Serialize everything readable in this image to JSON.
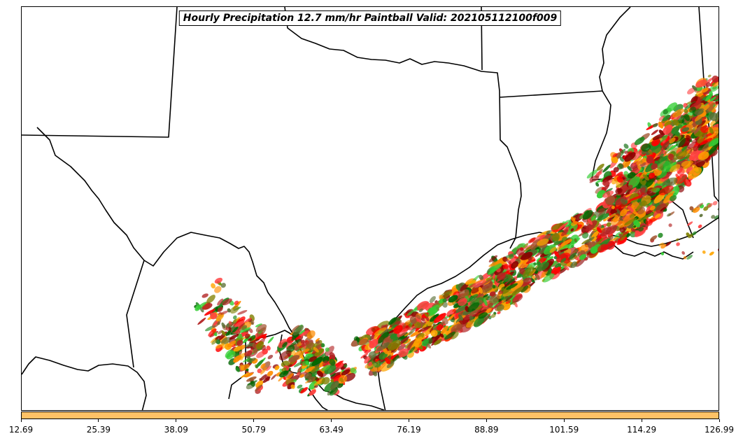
{
  "figure": {
    "title": "Hourly Precipitation 12.7 mm/hr Paintball Valid: 202105112100f009"
  },
  "colorbar": {
    "color": "#ffc266",
    "tick_labels": [
      "12.69",
      "25.39",
      "38.09",
      "50.79",
      "63.49",
      "76.19",
      "88.89",
      "101.59",
      "114.29",
      "126.99"
    ]
  },
  "ensemble_member_colors": [
    "#b22222",
    "#8b0000",
    "#ff0000",
    "#ff4040",
    "#ff8c00",
    "#ffa500",
    "#808000",
    "#228b22",
    "#006400",
    "#32cd32",
    "#556b2f",
    "#a0522d"
  ]
}
